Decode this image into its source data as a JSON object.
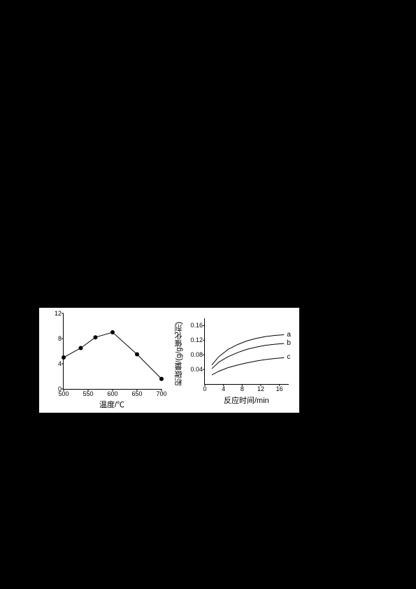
{
  "chart1": {
    "type": "line",
    "xlim": [
      500,
      700
    ],
    "ylim": [
      0,
      12
    ],
    "xticks": [
      500,
      550,
      600,
      650,
      700
    ],
    "yticks": [
      0,
      4,
      8,
      12
    ],
    "points": [
      {
        "x": 500,
        "y": 5.0
      },
      {
        "x": 535,
        "y": 6.5
      },
      {
        "x": 565,
        "y": 8.2
      },
      {
        "x": 600,
        "y": 9.0
      },
      {
        "x": 650,
        "y": 5.5
      },
      {
        "x": 700,
        "y": 1.6
      }
    ],
    "xlabel": "温度/℃",
    "line_color": "#000000",
    "marker_color": "#000000",
    "marker_size": 3,
    "line_width": 1,
    "background_color": "#ffffff"
  },
  "chart2": {
    "type": "line",
    "xlim": [
      0,
      18
    ],
    "ylim": [
      0,
      0.18
    ],
    "xticks": [
      0,
      4,
      8,
      12,
      16
    ],
    "yticks": [
      0.04,
      0.08,
      0.12,
      0.16
    ],
    "series": [
      {
        "name": "a",
        "points": [
          {
            "x": 1.5,
            "y": 0.052
          },
          {
            "x": 3,
            "y": 0.075
          },
          {
            "x": 5,
            "y": 0.095
          },
          {
            "x": 7,
            "y": 0.108
          },
          {
            "x": 9,
            "y": 0.118
          },
          {
            "x": 11,
            "y": 0.125
          },
          {
            "x": 13,
            "y": 0.13
          },
          {
            "x": 15,
            "y": 0.133
          },
          {
            "x": 17,
            "y": 0.135
          }
        ]
      },
      {
        "name": "b",
        "points": [
          {
            "x": 1.5,
            "y": 0.042
          },
          {
            "x": 3,
            "y": 0.06
          },
          {
            "x": 5,
            "y": 0.075
          },
          {
            "x": 7,
            "y": 0.086
          },
          {
            "x": 9,
            "y": 0.095
          },
          {
            "x": 11,
            "y": 0.101
          },
          {
            "x": 13,
            "y": 0.106
          },
          {
            "x": 15,
            "y": 0.109
          },
          {
            "x": 17,
            "y": 0.111
          }
        ]
      },
      {
        "name": "c",
        "points": [
          {
            "x": 1.5,
            "y": 0.025
          },
          {
            "x": 3,
            "y": 0.035
          },
          {
            "x": 5,
            "y": 0.045
          },
          {
            "x": 7,
            "y": 0.052
          },
          {
            "x": 9,
            "y": 0.058
          },
          {
            "x": 11,
            "y": 0.063
          },
          {
            "x": 13,
            "y": 0.067
          },
          {
            "x": 15,
            "y": 0.07
          },
          {
            "x": 17,
            "y": 0.072
          }
        ]
      }
    ],
    "ylabel": "积碳量/(g/g催化剂)",
    "xlabel": "反应时间/min",
    "line_color": "#000000",
    "line_width": 1,
    "background_color": "#ffffff"
  }
}
